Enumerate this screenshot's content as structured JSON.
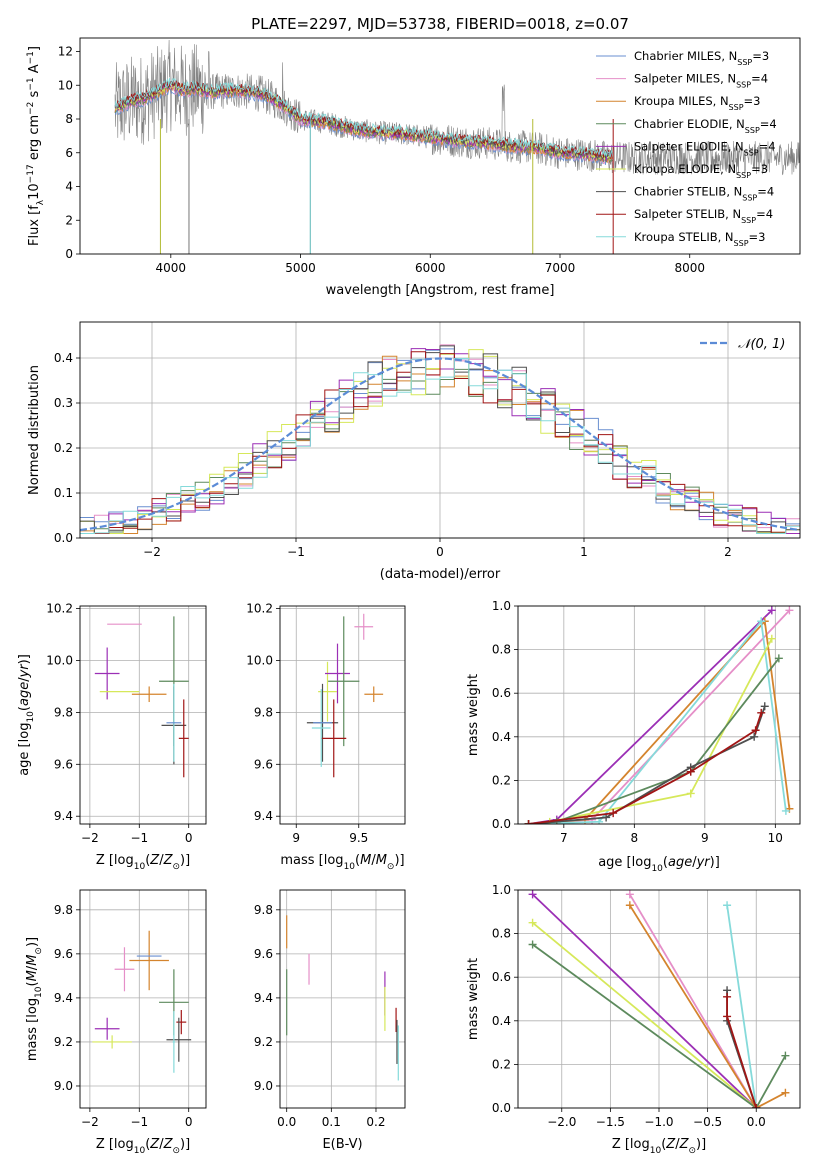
{
  "figure_title": "PLATE=2297, MJD=53738, FIBERID=0018, z=0.07",
  "colors": {
    "Chabrier MILES": "#6a8fd0",
    "Salpeter MILES": "#e58fc8",
    "Kroupa MILES": "#d4842e",
    "Chabrier ELODIE": "#5d8a5d",
    "Salpeter ELODIE": "#9b2fb5",
    "Kroupa ELODIE": "#d6e85a",
    "Chabrier STELIB": "#4f4f4f",
    "Salpeter STELIB": "#a11616",
    "Kroupa STELIB": "#85dada",
    "data": "#808080",
    "normal": "#5b8bd6",
    "grid": "#b0b0b0"
  },
  "chart_data": [
    {
      "id": "spectrum",
      "type": "line",
      "xlabel": "wavelength [Angstrom, rest frame]",
      "ylabel_main": "Flux [f",
      "ylabel_sub": "λ",
      "ylabel_rest": "10",
      "ylabel_exp1": "−17",
      "ylabel_mid": " erg cm",
      "ylabel_exp2": "−2",
      "ylabel_s": " s",
      "ylabel_exp3": "−1",
      "ylabel_end": " A",
      "ylabel_exp4": "−1",
      "ylabel_close": "]",
      "xlim": [
        3300,
        8850
      ],
      "ylim": [
        0,
        12.8
      ],
      "xticks": [
        4000,
        5000,
        6000,
        7000,
        8000
      ],
      "yticks": [
        0,
        2,
        4,
        6,
        8,
        10,
        12
      ],
      "grid": false,
      "legend_position": "top-right",
      "legend": [
        {
          "name": "Chabrier MILES",
          "nssp": "3"
        },
        {
          "name": "Salpeter MILES",
          "nssp": "4"
        },
        {
          "name": "Kroupa MILES",
          "nssp": "3"
        },
        {
          "name": "Chabrier ELODIE",
          "nssp": "4"
        },
        {
          "name": "Salpeter ELODIE",
          "nssp": "4"
        },
        {
          "name": "Kroupa ELODIE",
          "nssp": "3"
        },
        {
          "name": "Chabrier STELIB",
          "nssp": "4"
        },
        {
          "name": "Salpeter STELIB",
          "nssp": "4"
        },
        {
          "name": "Kroupa STELIB",
          "nssp": "3"
        }
      ],
      "legend_prefix": "N",
      "legend_sub": "SSP",
      "model_x": [
        3570,
        3700,
        3800,
        3900,
        4000,
        4100,
        4200,
        4300,
        4500,
        4700,
        4850,
        5000,
        5200,
        5400,
        5600,
        5800,
        6000,
        6200,
        6400,
        6600,
        6800,
        7000,
        7200,
        7400
      ],
      "model_y": [
        8.6,
        9.1,
        9.2,
        9.6,
        10.0,
        9.7,
        9.8,
        9.6,
        9.7,
        9.5,
        8.9,
        8.0,
        7.8,
        7.4,
        7.2,
        7.1,
        6.9,
        6.7,
        6.6,
        6.4,
        6.3,
        6.0,
        5.9,
        5.7
      ]
    },
    {
      "id": "residuals",
      "type": "line",
      "xlabel": "(data-model)/error",
      "ylabel": "Normed distribution",
      "xlim": [
        -2.5,
        2.5
      ],
      "ylim": [
        0,
        0.48
      ],
      "xticks": [
        -2,
        -1,
        0,
        1,
        2
      ],
      "yticks": [
        0.0,
        0.1,
        0.2,
        0.3,
        0.4
      ],
      "grid": true,
      "legend_position": "top-right",
      "legend_label": "𝒩(0, 1)",
      "bin_width": 0.1
    },
    {
      "id": "age_vs_Z",
      "type": "scatter",
      "xlabel": "Z [log10(Z/Z⊙)]",
      "ylabel": "age  [log10(age/yr)]",
      "xlim": [
        -2.2,
        0.35
      ],
      "ylim": [
        9.37,
        10.21
      ],
      "xticks": [
        -2,
        -1,
        0
      ],
      "yticks": [
        9.4,
        9.6,
        9.8,
        10.0,
        10.2
      ],
      "grid": true,
      "points": [
        {
          "m": "Salpeter ELODIE",
          "x": -1.65,
          "xe": 0.5,
          "y": 9.95,
          "ye": 0.2
        },
        {
          "m": "Salpeter MILES",
          "x": -1.3,
          "xe": 0.7,
          "y": 10.14,
          "ye": 0.0
        },
        {
          "m": "Kroupa MILES",
          "x": -0.8,
          "xe": 0.7,
          "y": 9.87,
          "ye": 0.06
        },
        {
          "m": "Kroupa ELODIE",
          "x": -1.4,
          "xe": 0.8,
          "y": 9.88,
          "ye": 0.0
        },
        {
          "m": "Chabrier ELODIE",
          "x": -0.3,
          "xe": 0.6,
          "y": 9.92,
          "ye": 0.5
        },
        {
          "m": "Chabrier STELIB",
          "x": -0.3,
          "xe": 0.5,
          "y": 9.75,
          "ye": 0.3
        },
        {
          "m": "Salpeter STELIB",
          "x": -0.1,
          "xe": 0.2,
          "y": 9.7,
          "ye": 0.3
        },
        {
          "m": "Kroupa STELIB",
          "x": -0.3,
          "xe": 0.05,
          "y": 9.76,
          "ye": 0.3
        },
        {
          "m": "Chabrier MILES",
          "x": -0.3,
          "xe": 0.3,
          "y": 9.76,
          "ye": 0.0
        }
      ]
    },
    {
      "id": "age_vs_mass",
      "type": "scatter",
      "xlabel": "mass [log10(M/M⊙)]",
      "xlim": [
        8.87,
        9.87
      ],
      "ylim": [
        9.37,
        10.21
      ],
      "xticks": [
        9.0,
        9.5
      ],
      "yticks": [
        9.4,
        9.6,
        9.8,
        10.0,
        10.2
      ],
      "grid": true,
      "points": [
        {
          "m": "Salpeter MILES",
          "x": 9.54,
          "xe": 0.15,
          "y": 10.13,
          "ye": 0.1
        },
        {
          "m": "Kroupa ELODIE",
          "x": 9.25,
          "xe": 0.15,
          "y": 9.88,
          "ye": 0.23
        },
        {
          "m": "Salpeter ELODIE",
          "x": 9.33,
          "xe": 0.2,
          "y": 9.95,
          "ye": 0.23
        },
        {
          "m": "Kroupa MILES",
          "x": 9.62,
          "xe": 0.15,
          "y": 9.87,
          "ye": 0.06
        },
        {
          "m": "Chabrier ELODIE",
          "x": 9.38,
          "xe": 0.25,
          "y": 9.92,
          "ye": 0.5
        },
        {
          "m": "Chabrier STELIB",
          "x": 9.21,
          "xe": 0.25,
          "y": 9.76,
          "ye": 0.3
        },
        {
          "m": "Salpeter STELIB",
          "x": 9.3,
          "xe": 0.2,
          "y": 9.7,
          "ye": 0.3
        },
        {
          "m": "Kroupa STELIB",
          "x": 9.2,
          "xe": 0.15,
          "y": 9.74,
          "ye": 0.3
        },
        {
          "m": "Chabrier MILES",
          "x": 9.21,
          "xe": 0.15,
          "y": 9.76,
          "ye": 0.0
        }
      ]
    },
    {
      "id": "weight_vs_age",
      "type": "line",
      "xlabel": "age  [log10(age/yr)]",
      "ylabel": "mass weight",
      "xlim": [
        6.35,
        10.35
      ],
      "ylim": [
        0,
        1.0
      ],
      "xticks": [
        7,
        8,
        9,
        10
      ],
      "yticks": [
        0.0,
        0.2,
        0.4,
        0.6,
        0.8,
        1.0
      ],
      "grid": true,
      "series": [
        {
          "m": "Salpeter ELODIE",
          "x": [
            6.5,
            6.9,
            9.95
          ],
          "y": [
            0.0,
            0.02,
            0.98
          ]
        },
        {
          "m": "Salpeter MILES",
          "x": [
            6.5,
            7.4,
            10.2
          ],
          "y": [
            0.0,
            0.02,
            0.98
          ]
        },
        {
          "m": "Kroupa MILES",
          "x": [
            6.5,
            7.3,
            9.85,
            10.2
          ],
          "y": [
            0.0,
            0.02,
            0.93,
            0.07
          ]
        },
        {
          "m": "Kroupa STELIB",
          "x": [
            6.5,
            7.5,
            9.8,
            10.15
          ],
          "y": [
            0.0,
            0.01,
            0.93,
            0.06
          ]
        },
        {
          "m": "Kroupa ELODIE",
          "x": [
            6.5,
            6.8,
            8.8,
            9.95
          ],
          "y": [
            0.0,
            0.01,
            0.14,
            0.85
          ]
        },
        {
          "m": "Chabrier ELODIE",
          "x": [
            6.5,
            6.9,
            8.8,
            10.05
          ],
          "y": [
            0.0,
            0.01,
            0.24,
            0.76
          ]
        },
        {
          "m": "Chabrier STELIB",
          "x": [
            6.5,
            7.6,
            8.8,
            9.7,
            9.85
          ],
          "y": [
            0.0,
            0.03,
            0.26,
            0.4,
            0.54
          ]
        },
        {
          "m": "Salpeter STELIB",
          "x": [
            6.5,
            7.7,
            8.8,
            9.72,
            9.8
          ],
          "y": [
            0.0,
            0.05,
            0.24,
            0.43,
            0.51
          ]
        }
      ]
    },
    {
      "id": "mass_vs_Z",
      "type": "scatter",
      "xlabel": "Z [log10(Z/Z⊙)]",
      "ylabel": "mass [log10(M/M⊙)]",
      "xlim": [
        -2.2,
        0.35
      ],
      "ylim": [
        8.9,
        9.89
      ],
      "xticks": [
        -2,
        -1,
        0
      ],
      "yticks": [
        9.0,
        9.2,
        9.4,
        9.6,
        9.8
      ],
      "grid": true,
      "points": [
        {
          "m": "Salpeter ELODIE",
          "x": -1.65,
          "xe": 0.5,
          "y": 9.26,
          "ye": 0.1
        },
        {
          "m": "Kroupa ELODIE",
          "x": -1.55,
          "xe": 0.8,
          "y": 9.2,
          "ye": 0.06
        },
        {
          "m": "Salpeter MILES",
          "x": -1.3,
          "xe": 0.4,
          "y": 9.53,
          "ye": 0.2
        },
        {
          "m": "Kroupa MILES",
          "x": -0.8,
          "xe": 0.8,
          "y": 9.57,
          "ye": 0.27
        },
        {
          "m": "Chabrier MILES",
          "x": -0.8,
          "xe": 0.5,
          "y": 9.59,
          "ye": 0.0
        },
        {
          "m": "Chabrier ELODIE",
          "x": -0.3,
          "xe": 0.6,
          "y": 9.38,
          "ye": 0.3
        },
        {
          "m": "Salpeter STELIB",
          "x": -0.15,
          "xe": 0.2,
          "y": 9.29,
          "ye": 0.11
        },
        {
          "m": "Chabrier STELIB",
          "x": -0.2,
          "xe": 0.5,
          "y": 9.21,
          "ye": 0.2
        },
        {
          "m": "Kroupa STELIB",
          "x": -0.3,
          "xe": 0.05,
          "y": 9.2,
          "ye": 0.28
        }
      ]
    },
    {
      "id": "mass_vs_ebv",
      "type": "scatter",
      "xlabel": "E(B-V)",
      "xlim": [
        -0.015,
        0.265
      ],
      "ylim": [
        8.9,
        9.89
      ],
      "xticks": [
        0.0,
        0.1,
        0.2
      ],
      "xticklabels": [
        "0.0",
        "0.1",
        "0.2"
      ],
      "yticks": [
        9.0,
        9.2,
        9.4,
        9.6,
        9.8
      ],
      "grid": true,
      "points": [
        {
          "m": "Kroupa MILES",
          "x": 0.0,
          "xe": 0,
          "y": 9.7,
          "ye": 0.15
        },
        {
          "m": "Chabrier ELODIE",
          "x": 0.0,
          "xe": 0,
          "y": 9.38,
          "ye": 0.3
        },
        {
          "m": "Salpeter MILES",
          "x": 0.05,
          "xe": 0,
          "y": 9.53,
          "ye": 0.14
        },
        {
          "m": "Salpeter ELODIE",
          "x": 0.22,
          "xe": 0,
          "y": 9.42,
          "ye": 0.2
        },
        {
          "m": "Kroupa ELODIE",
          "x": 0.22,
          "xe": 0,
          "y": 9.35,
          "ye": 0.2
        },
        {
          "m": "Salpeter STELIB",
          "x": 0.245,
          "xe": 0,
          "y": 9.3,
          "ye": 0.11
        },
        {
          "m": "Chabrier STELIB",
          "x": 0.247,
          "xe": 0,
          "y": 9.2,
          "ye": 0.2
        },
        {
          "m": "Kroupa STELIB",
          "x": 0.25,
          "xe": 0,
          "y": 9.15,
          "ye": 0.25
        }
      ]
    },
    {
      "id": "weight_vs_Z",
      "type": "line",
      "xlabel": "Z [log10(Z/Z⊙)]",
      "ylabel": "mass weight",
      "xlim": [
        -2.45,
        0.45
      ],
      "ylim": [
        0,
        1.0
      ],
      "xticks": [
        -2.0,
        -1.5,
        -1.0,
        -0.5,
        0.0
      ],
      "xticklabels": [
        "−2.0",
        "−1.5",
        "−1.0",
        "−0.5",
        "0.0"
      ],
      "yticks": [
        0.0,
        0.2,
        0.4,
        0.6,
        0.8,
        1.0
      ],
      "grid": true,
      "series": [
        {
          "m": "Salpeter ELODIE",
          "x": [
            -2.3,
            0.0
          ],
          "y": [
            0.98,
            0.0
          ]
        },
        {
          "m": "Kroupa ELODIE",
          "x": [
            -2.3,
            0.0
          ],
          "y": [
            0.85,
            0.0
          ]
        },
        {
          "m": "Chabrier ELODIE",
          "x": [
            -2.3,
            0.0,
            0.3
          ],
          "y": [
            0.75,
            0.0,
            0.24
          ]
        },
        {
          "m": "Salpeter MILES",
          "x": [
            -1.3,
            0.0
          ],
          "y": [
            0.98,
            0.0
          ]
        },
        {
          "m": "Kroupa MILES",
          "x": [
            -1.3,
            0.0,
            0.3
          ],
          "y": [
            0.93,
            0.0,
            0.07
          ]
        },
        {
          "m": "Kroupa STELIB",
          "x": [
            -0.3,
            0.0
          ],
          "y": [
            0.93,
            0.0
          ]
        },
        {
          "m": "Chabrier STELIB",
          "x": [
            -0.3,
            -0.3,
            0.0
          ],
          "y": [
            0.54,
            0.4,
            0.0
          ]
        },
        {
          "m": "Salpeter STELIB",
          "x": [
            -0.3,
            -0.3,
            0.0
          ],
          "y": [
            0.51,
            0.42,
            0.0
          ]
        }
      ]
    }
  ]
}
